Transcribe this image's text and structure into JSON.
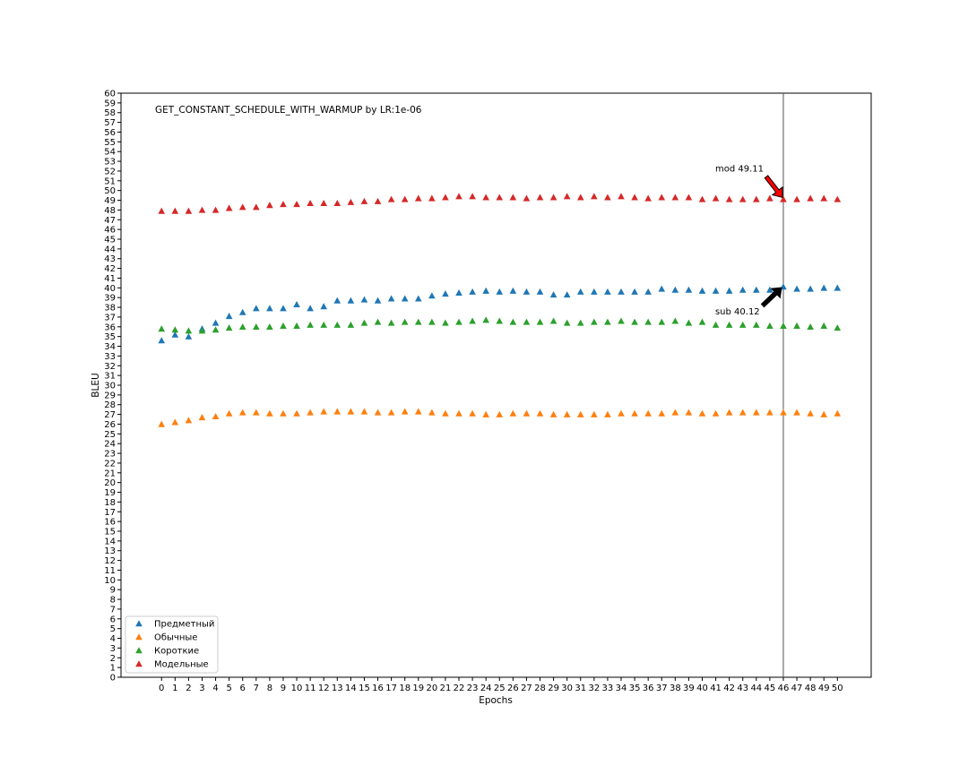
{
  "chart_data": {
    "type": "scatter",
    "title": "GET_CONSTANT_SCHEDULE_WITH_WARMUP by LR:1e-06",
    "xlabel": "Epochs",
    "ylabel": "BLEU",
    "xlim": [
      -3,
      52.5
    ],
    "ylim": [
      0,
      60
    ],
    "xticks": [
      0,
      1,
      2,
      3,
      4,
      5,
      6,
      7,
      8,
      9,
      10,
      11,
      12,
      13,
      14,
      15,
      16,
      17,
      18,
      19,
      20,
      21,
      22,
      23,
      24,
      25,
      26,
      27,
      28,
      29,
      30,
      31,
      32,
      33,
      34,
      35,
      36,
      37,
      38,
      39,
      40,
      41,
      42,
      43,
      44,
      45,
      46,
      47,
      48,
      49,
      50
    ],
    "yticks_step": 1,
    "grid": false,
    "legend_position": "lower-left",
    "marker": "triangle",
    "x": [
      0,
      1,
      2,
      3,
      4,
      5,
      6,
      7,
      8,
      9,
      10,
      11,
      12,
      13,
      14,
      15,
      16,
      17,
      18,
      19,
      20,
      21,
      22,
      23,
      24,
      25,
      26,
      27,
      28,
      29,
      30,
      31,
      32,
      33,
      34,
      35,
      36,
      37,
      38,
      39,
      40,
      41,
      42,
      43,
      44,
      45,
      46,
      47,
      48,
      49,
      50
    ],
    "series": [
      {
        "name": "Предметный",
        "color": "#1f77b4",
        "values": [
          34.6,
          35.2,
          35.0,
          35.8,
          36.4,
          37.1,
          37.5,
          37.9,
          37.9,
          37.9,
          38.3,
          37.9,
          38.1,
          38.7,
          38.7,
          38.8,
          38.7,
          38.9,
          38.9,
          38.9,
          39.2,
          39.4,
          39.5,
          39.6,
          39.7,
          39.6,
          39.7,
          39.6,
          39.6,
          39.3,
          39.3,
          39.6,
          39.6,
          39.6,
          39.6,
          39.6,
          39.6,
          39.9,
          39.8,
          39.8,
          39.7,
          39.7,
          39.7,
          39.8,
          39.8,
          39.8,
          40.12,
          39.9,
          39.9,
          40.0,
          40.0
        ]
      },
      {
        "name": "Обычные",
        "color": "#ff7f0e",
        "values": [
          26.0,
          26.2,
          26.4,
          26.7,
          26.8,
          27.1,
          27.2,
          27.2,
          27.1,
          27.1,
          27.1,
          27.2,
          27.3,
          27.3,
          27.3,
          27.3,
          27.2,
          27.2,
          27.3,
          27.3,
          27.2,
          27.1,
          27.1,
          27.1,
          27.0,
          27.0,
          27.1,
          27.1,
          27.1,
          27.0,
          27.0,
          27.0,
          27.0,
          27.0,
          27.1,
          27.1,
          27.1,
          27.1,
          27.2,
          27.2,
          27.1,
          27.1,
          27.2,
          27.2,
          27.2,
          27.2,
          27.2,
          27.2,
          27.1,
          27.0,
          27.1
        ]
      },
      {
        "name": "Короткие",
        "color": "#2ca02c",
        "values": [
          35.8,
          35.7,
          35.6,
          35.6,
          35.7,
          35.9,
          36.0,
          36.0,
          36.0,
          36.1,
          36.1,
          36.2,
          36.2,
          36.2,
          36.2,
          36.4,
          36.5,
          36.4,
          36.5,
          36.5,
          36.5,
          36.4,
          36.5,
          36.6,
          36.7,
          36.6,
          36.5,
          36.5,
          36.5,
          36.6,
          36.4,
          36.4,
          36.5,
          36.5,
          36.6,
          36.5,
          36.5,
          36.5,
          36.6,
          36.4,
          36.5,
          36.2,
          36.2,
          36.2,
          36.2,
          36.1,
          36.1,
          36.1,
          36.0,
          36.1,
          35.9
        ]
      },
      {
        "name": "Модельные",
        "color": "#d62728",
        "values": [
          47.9,
          47.9,
          47.9,
          48.0,
          48.0,
          48.2,
          48.3,
          48.3,
          48.5,
          48.6,
          48.6,
          48.7,
          48.7,
          48.7,
          48.8,
          48.9,
          48.9,
          49.1,
          49.1,
          49.2,
          49.2,
          49.3,
          49.4,
          49.4,
          49.3,
          49.3,
          49.3,
          49.2,
          49.3,
          49.3,
          49.4,
          49.3,
          49.4,
          49.3,
          49.4,
          49.3,
          49.2,
          49.3,
          49.3,
          49.3,
          49.1,
          49.2,
          49.1,
          49.1,
          49.1,
          49.2,
          49.11,
          49.1,
          49.2,
          49.2,
          49.1
        ]
      }
    ],
    "vline_x": 46,
    "annotations": [
      {
        "text": "mod 49.11",
        "x": 46,
        "y": 49.11,
        "arrow_color": "#ff0000"
      },
      {
        "text": "sub 40.12",
        "x": 46,
        "y": 40.12,
        "arrow_color": "#000000"
      }
    ]
  }
}
